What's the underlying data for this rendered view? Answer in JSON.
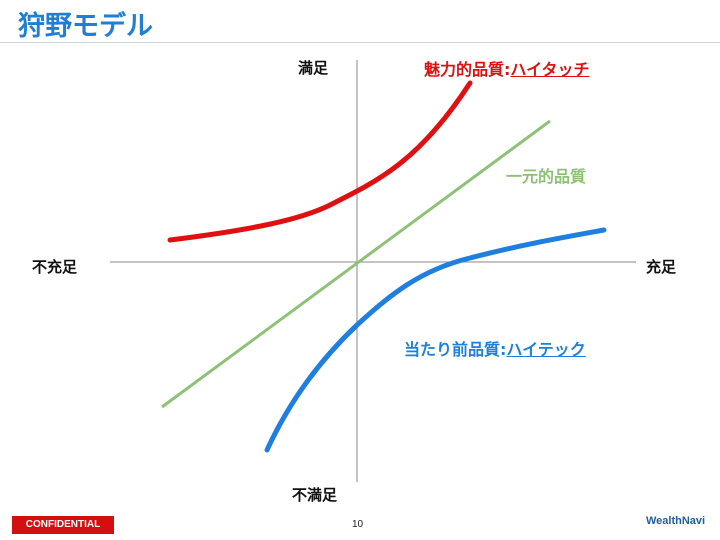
{
  "title": "狩野モデル",
  "axes": {
    "top": "満足",
    "bottom": "不満足",
    "left": "不充足",
    "right": "充足"
  },
  "series": {
    "attractive": {
      "label": "魅力的品質",
      "sep": ":",
      "sub": "ハイタッチ",
      "color": "#e01010"
    },
    "one_dimensional": {
      "label": "一元的品質",
      "color": "#8dc276"
    },
    "must_be": {
      "label": "当たり前品質",
      "sep": ":",
      "sub": "ハイテック",
      "color": "#1e7fe0"
    }
  },
  "footer": {
    "confidential": "CONFIDENTIAL",
    "page": "10",
    "logo": "WealthNavi"
  }
}
